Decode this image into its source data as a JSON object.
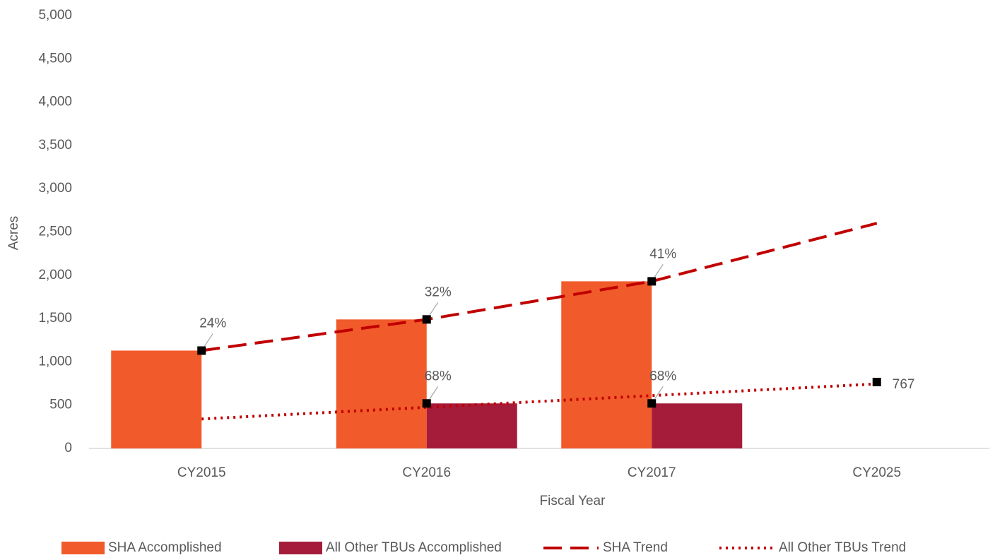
{
  "chart_data": {
    "type": "bar",
    "x_label": "Fiscal Year",
    "y_label": "Acres",
    "categories": [
      "CY2015",
      "CY2016",
      "CY2017",
      "CY2025"
    ],
    "series": [
      {
        "name": "SHA Accomplished",
        "type": "bar",
        "color": "#f15a2b",
        "values": [
          1130,
          1490,
          1930,
          null
        ]
      },
      {
        "name": "All Other TBUs Accomplished",
        "type": "bar",
        "color": "#a51c3a",
        "values": [
          null,
          520,
          520,
          null
        ]
      },
      {
        "name": "SHA Trend",
        "type": "line",
        "style": "dashed",
        "color": "#c00000",
        "values": [
          1130,
          1490,
          1930,
          2600
        ]
      },
      {
        "name": "All Other TBUs Trend",
        "type": "line",
        "style": "dotted",
        "color": "#c00000",
        "values": [
          340,
          475,
          610,
          745
        ]
      }
    ],
    "annotations": [
      {
        "category": 0,
        "value": 1130,
        "label": "24%"
      },
      {
        "category": 1,
        "value": 1490,
        "label": "32%"
      },
      {
        "category": 2,
        "value": 1930,
        "label": "41%"
      },
      {
        "category": 1,
        "value": 520,
        "label": "68%"
      },
      {
        "category": 2,
        "value": 520,
        "label": "68%"
      },
      {
        "category": 3,
        "value": 767,
        "label": "767"
      }
    ],
    "marker_color": "#000000",
    "ylim": [
      0,
      5000
    ],
    "yticks": [
      0,
      500,
      {
        "value": 1000,
        "label": "1,000"
      },
      {
        "value": 1500,
        "label": "1,500"
      },
      {
        "value": 2000,
        "label": "2,000"
      },
      {
        "value": 2500,
        "label": "2,500"
      },
      {
        "value": 3000,
        "label": "3,000"
      },
      {
        "value": 3500,
        "label": "3,500"
      },
      {
        "value": 4000,
        "label": "4,000"
      },
      {
        "value": 4500,
        "label": "4,500"
      },
      {
        "value": 5000,
        "label": "5,000"
      }
    ],
    "grid": false,
    "legend": "bottom"
  }
}
